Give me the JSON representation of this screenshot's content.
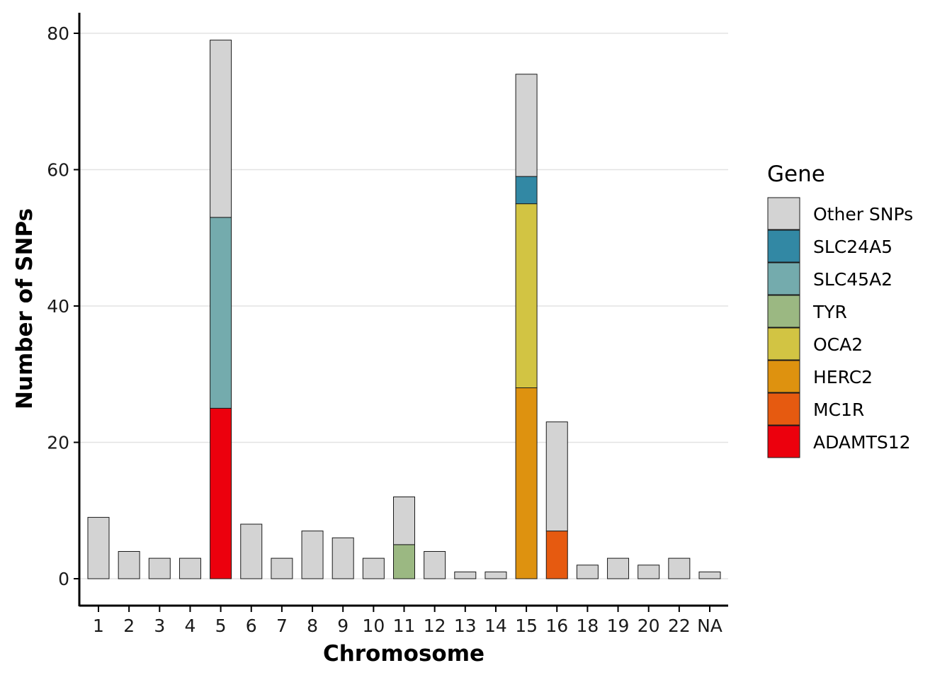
{
  "chart_data": {
    "type": "bar",
    "stacked": true,
    "xlabel": "Chromosome",
    "ylabel": "Number of SNPs",
    "ylim": [
      -4,
      83
    ],
    "yticks": [
      0,
      20,
      40,
      60,
      80
    ],
    "grid": "horizontal",
    "legend": {
      "title": "Gene",
      "placement": "right",
      "items": [
        {
          "name": "Other SNPs",
          "color": "#D3D3D3"
        },
        {
          "name": "SLC24A5",
          "color": "#3288A4"
        },
        {
          "name": "SLC45A2",
          "color": "#74ABAD"
        },
        {
          "name": "TYR",
          "color": "#9BB882"
        },
        {
          "name": "OCA2",
          "color": "#D2C443"
        },
        {
          "name": "HERC2",
          "color": "#DE920F"
        },
        {
          "name": "MC1R",
          "color": "#E65A10"
        },
        {
          "name": "ADAMTS12",
          "color": "#EC000D"
        }
      ]
    },
    "stack_order": [
      "ADAMTS12",
      "MC1R",
      "HERC2",
      "OCA2",
      "TYR",
      "SLC45A2",
      "SLC24A5",
      "Other SNPs"
    ],
    "categories": [
      "1",
      "2",
      "3",
      "4",
      "5",
      "6",
      "7",
      "8",
      "9",
      "10",
      "11",
      "12",
      "13",
      "14",
      "15",
      "16",
      "18",
      "19",
      "20",
      "22",
      "NA"
    ],
    "series": [
      {
        "name": "Other SNPs",
        "values": [
          9,
          4,
          3,
          3,
          26,
          8,
          3,
          7,
          6,
          3,
          7,
          4,
          1,
          1,
          15,
          16,
          2,
          3,
          2,
          3,
          1
        ]
      },
      {
        "name": "SLC24A5",
        "values": [
          0,
          0,
          0,
          0,
          0,
          0,
          0,
          0,
          0,
          0,
          0,
          0,
          0,
          0,
          4,
          0,
          0,
          0,
          0,
          0,
          0
        ]
      },
      {
        "name": "SLC45A2",
        "values": [
          0,
          0,
          0,
          0,
          28,
          0,
          0,
          0,
          0,
          0,
          0,
          0,
          0,
          0,
          0,
          0,
          0,
          0,
          0,
          0,
          0
        ]
      },
      {
        "name": "TYR",
        "values": [
          0,
          0,
          0,
          0,
          0,
          0,
          0,
          0,
          0,
          0,
          5,
          0,
          0,
          0,
          0,
          0,
          0,
          0,
          0,
          0,
          0
        ]
      },
      {
        "name": "OCA2",
        "values": [
          0,
          0,
          0,
          0,
          0,
          0,
          0,
          0,
          0,
          0,
          0,
          0,
          0,
          0,
          27,
          0,
          0,
          0,
          0,
          0,
          0
        ]
      },
      {
        "name": "HERC2",
        "values": [
          0,
          0,
          0,
          0,
          0,
          0,
          0,
          0,
          0,
          0,
          0,
          0,
          0,
          0,
          28,
          0,
          0,
          0,
          0,
          0,
          0
        ]
      },
      {
        "name": "MC1R",
        "values": [
          0,
          0,
          0,
          0,
          0,
          0,
          0,
          0,
          0,
          0,
          0,
          0,
          0,
          0,
          0,
          7,
          0,
          0,
          0,
          0,
          0
        ]
      },
      {
        "name": "ADAMTS12",
        "values": [
          0,
          0,
          0,
          0,
          25,
          0,
          0,
          0,
          0,
          0,
          0,
          0,
          0,
          0,
          0,
          0,
          0,
          0,
          0,
          0,
          0
        ]
      }
    ]
  }
}
